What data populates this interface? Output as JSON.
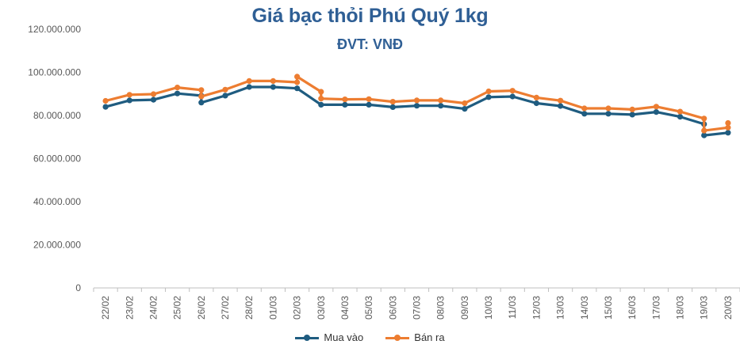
{
  "chart_data": {
    "type": "line",
    "title": "Giá bạc thỏi Phú Quý 1kg",
    "subtitle": "ĐVT: VNĐ",
    "categories": [
      "22/02",
      "23/02",
      "24/02",
      "25/02",
      "26/02",
      "27/02",
      "28/02",
      "01/03",
      "02/03",
      "03/03",
      "04/03",
      "05/03",
      "06/03",
      "07/03",
      "08/03",
      "09/03",
      "10/03",
      "11/03",
      "12/03",
      "13/03",
      "14/03",
      "15/03",
      "16/03",
      "17/03",
      "18/03",
      "19/03",
      "20/03"
    ],
    "y_ticks": [
      "0",
      "20.000.000",
      "40.000.000",
      "60.000.000",
      "80.000.000",
      "100.000.000",
      "120.000.000"
    ],
    "ylim": [
      0,
      120000000
    ],
    "grid": false,
    "legend_position": "bottom",
    "series": [
      {
        "name": "Mua vào",
        "color": "#1f5c80",
        "points": [
          {
            "x": 0,
            "y": 84000000
          },
          {
            "x": 1,
            "y": 87000000
          },
          {
            "x": 2,
            "y": 87300000
          },
          {
            "x": 3,
            "y": 90200000
          },
          {
            "x": 4,
            "y": 89200000
          },
          {
            "x": 4,
            "y": 86000000
          },
          {
            "x": 5,
            "y": 89200000
          },
          {
            "x": 6,
            "y": 93200000
          },
          {
            "x": 7,
            "y": 93200000
          },
          {
            "x": 8,
            "y": 92600000
          },
          {
            "x": 9,
            "y": 85000000
          },
          {
            "x": 10,
            "y": 85000000
          },
          {
            "x": 11,
            "y": 85000000
          },
          {
            "x": 12,
            "y": 83900000
          },
          {
            "x": 13,
            "y": 84500000
          },
          {
            "x": 14,
            "y": 84500000
          },
          {
            "x": 15,
            "y": 83100000
          },
          {
            "x": 16,
            "y": 88500000
          },
          {
            "x": 17,
            "y": 88800000
          },
          {
            "x": 18,
            "y": 85700000
          },
          {
            "x": 19,
            "y": 84400000
          },
          {
            "x": 20,
            "y": 80800000
          },
          {
            "x": 21,
            "y": 80800000
          },
          {
            "x": 22,
            "y": 80400000
          },
          {
            "x": 23,
            "y": 81600000
          },
          {
            "x": 24,
            "y": 79400000
          },
          {
            "x": 25,
            "y": 76000000
          },
          {
            "x": 25,
            "y": 70800000
          },
          {
            "x": 26,
            "y": 72000000
          }
        ]
      },
      {
        "name": "Bán ra",
        "color": "#ed7d31",
        "points": [
          {
            "x": 0,
            "y": 86800000
          },
          {
            "x": 1,
            "y": 89600000
          },
          {
            "x": 2,
            "y": 89900000
          },
          {
            "x": 3,
            "y": 93000000
          },
          {
            "x": 4,
            "y": 91800000
          },
          {
            "x": 4,
            "y": 88800000
          },
          {
            "x": 5,
            "y": 92000000
          },
          {
            "x": 6,
            "y": 96000000
          },
          {
            "x": 7,
            "y": 96000000
          },
          {
            "x": 8,
            "y": 95400000
          },
          {
            "x": 8,
            "y": 98000000
          },
          {
            "x": 9,
            "y": 91000000
          },
          {
            "x": 9,
            "y": 87800000
          },
          {
            "x": 10,
            "y": 87500000
          },
          {
            "x": 11,
            "y": 87600000
          },
          {
            "x": 12,
            "y": 86400000
          },
          {
            "x": 13,
            "y": 87000000
          },
          {
            "x": 14,
            "y": 87000000
          },
          {
            "x": 15,
            "y": 85700000
          },
          {
            "x": 16,
            "y": 91200000
          },
          {
            "x": 17,
            "y": 91500000
          },
          {
            "x": 18,
            "y": 88300000
          },
          {
            "x": 19,
            "y": 86900000
          },
          {
            "x": 20,
            "y": 83300000
          },
          {
            "x": 21,
            "y": 83300000
          },
          {
            "x": 22,
            "y": 82800000
          },
          {
            "x": 23,
            "y": 84100000
          },
          {
            "x": 24,
            "y": 81800000
          },
          {
            "x": 25,
            "y": 78600000
          },
          {
            "x": 25,
            "y": 73000000
          },
          {
            "x": 26,
            "y": 74400000
          },
          {
            "x": 26,
            "y": 76500000
          }
        ]
      }
    ]
  }
}
